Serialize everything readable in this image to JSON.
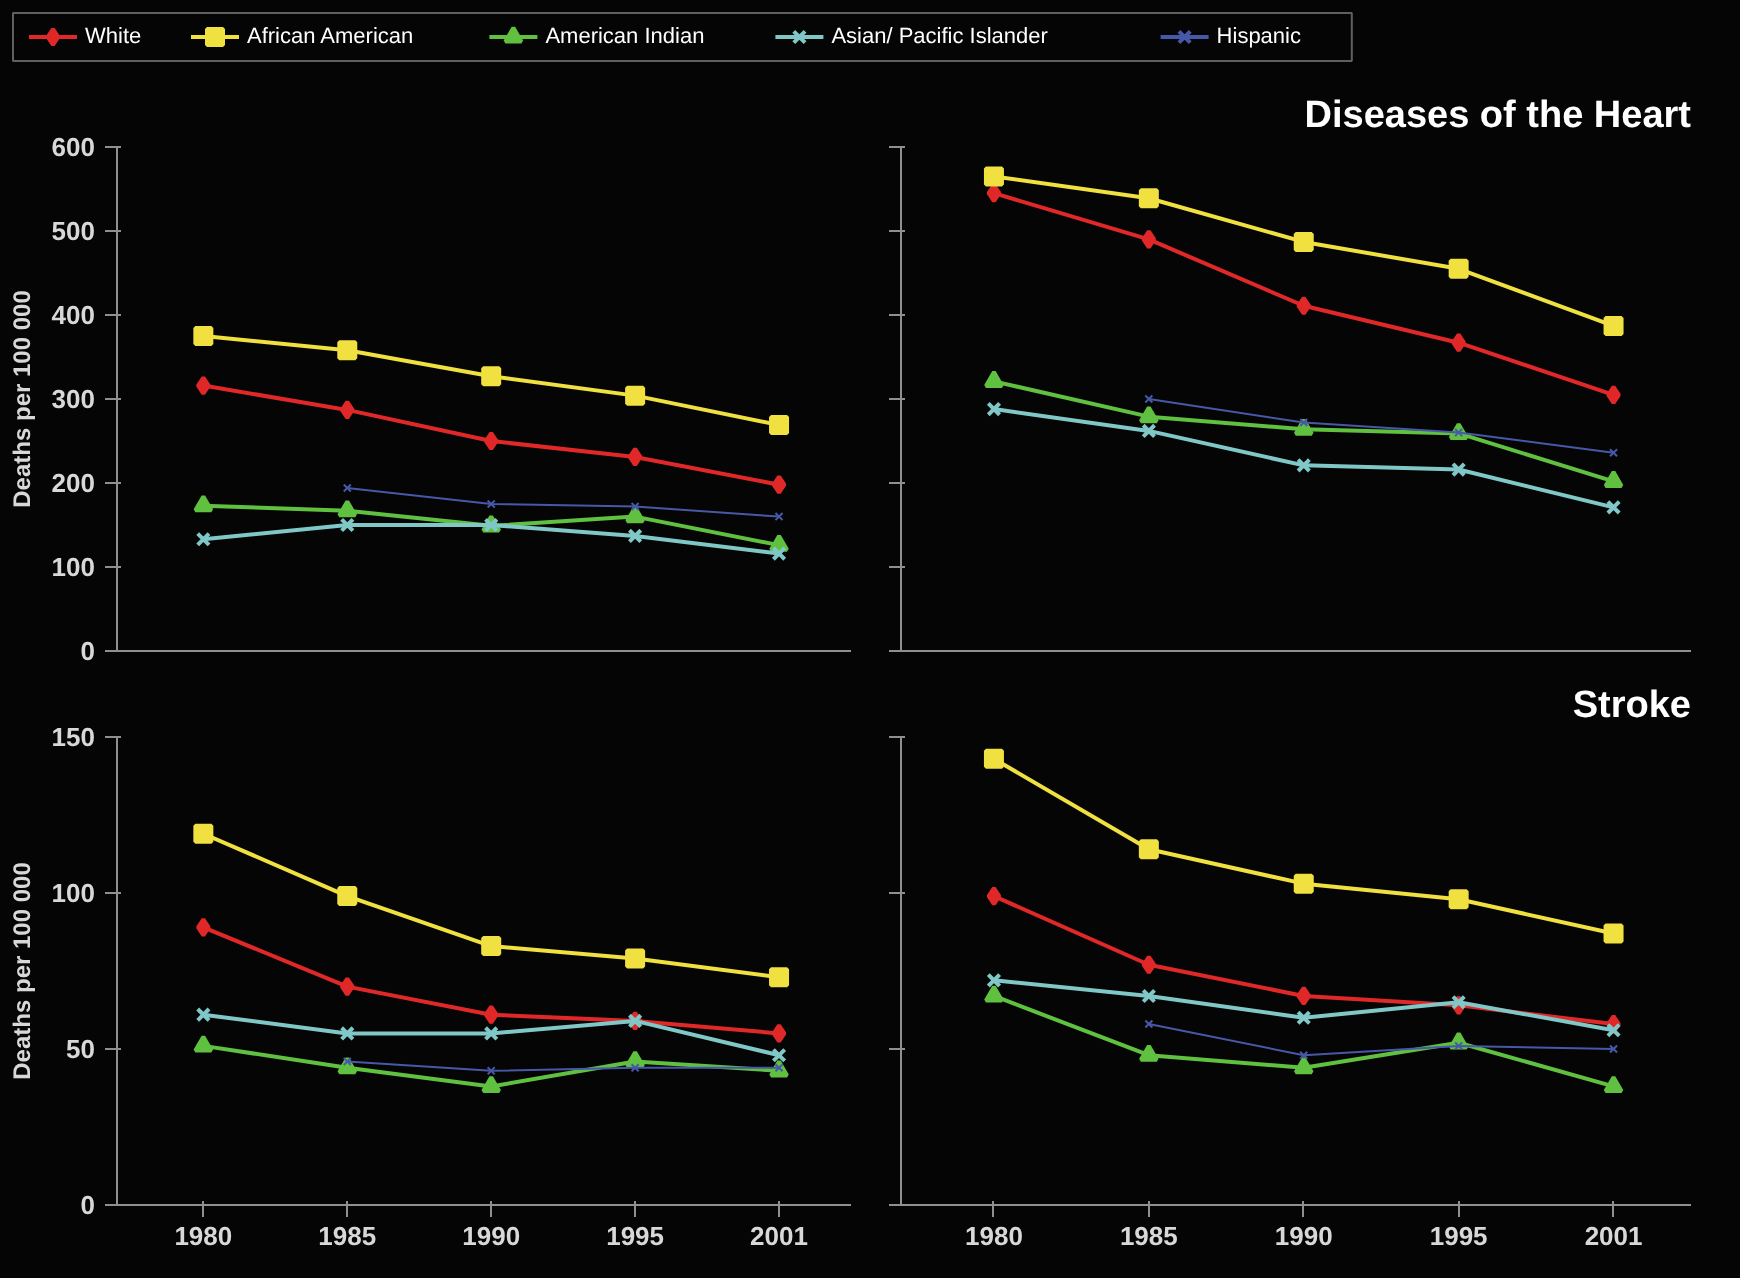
{
  "chart_data": [
    {
      "type": "line",
      "ylabel": "Deaths per 100 000",
      "categories": [
        "1980",
        "1985",
        "1990",
        "1995",
        "2001"
      ],
      "ylim": [
        0,
        600
      ],
      "yticks": [
        0,
        100,
        200,
        300,
        400,
        500,
        600
      ],
      "tick_labels": "y",
      "grid": false,
      "legend": "top",
      "line_style": "solid",
      "series": [
        {
          "name": "White",
          "color": "#e02828",
          "marker": "diamond",
          "values": [
            316,
            287,
            250,
            231,
            198
          ]
        },
        {
          "name": "African American",
          "color": "#f0e040",
          "marker": "square",
          "values": [
            375,
            358,
            327,
            304,
            269
          ]
        },
        {
          "name": "American Indian",
          "color": "#60c040",
          "marker": "triangle",
          "values": [
            173,
            167,
            149,
            160,
            126
          ]
        },
        {
          "name": "Asian/ Pacific Islander",
          "color": "#80c8c8",
          "marker": "cross",
          "values": [
            133,
            150,
            150,
            137,
            116
          ]
        },
        {
          "name": "Hispanic",
          "color": "#4858a8",
          "marker": "cross",
          "values": [
            null,
            194,
            175,
            172,
            160
          ]
        }
      ]
    },
    {
      "type": "line",
      "title": "Diseases of the Heart",
      "categories": [
        "1980",
        "1985",
        "1990",
        "1995",
        "2001"
      ],
      "ylim": [
        0,
        600
      ],
      "yticks": [
        0,
        100,
        200,
        300,
        400,
        500,
        600
      ],
      "tick_labels": false,
      "grid": false,
      "line_style": "solid",
      "series": [
        {
          "color": "#e02828",
          "marker": "diamond",
          "values": [
            545,
            490,
            411,
            367,
            305
          ]
        },
        {
          "color": "#f0e040",
          "marker": "square",
          "values": [
            565,
            539,
            487,
            455,
            387
          ]
        },
        {
          "color": "#60c040",
          "marker": "triangle",
          "values": [
            321,
            279,
            264,
            259,
            202
          ]
        },
        {
          "color": "#80c8c8",
          "marker": "cross",
          "values": [
            288,
            262,
            221,
            216,
            171
          ]
        },
        {
          "color": "#4858a8",
          "marker": "cross",
          "values": [
            null,
            300,
            272,
            260,
            236
          ]
        }
      ]
    },
    {
      "type": "line",
      "ylabel": "Deaths per 100 000",
      "categories": [
        "1980",
        "1985",
        "1990",
        "1995",
        "2001"
      ],
      "ylim": [
        0,
        150
      ],
      "yticks": [
        0,
        50,
        100,
        150
      ],
      "grid": false,
      "line_style": "solid",
      "series": [
        {
          "color": "#e02828",
          "marker": "diamond",
          "values": [
            89,
            70,
            61,
            59,
            55
          ]
        },
        {
          "color": "#f0e040",
          "marker": "square",
          "values": [
            119,
            99,
            83,
            79,
            73
          ]
        },
        {
          "color": "#60c040",
          "marker": "triangle",
          "values": [
            51,
            44,
            38,
            46,
            43
          ]
        },
        {
          "color": "#80c8c8",
          "marker": "cross",
          "values": [
            61,
            55,
            55,
            59,
            48
          ]
        },
        {
          "color": "#4858a8",
          "marker": "cross",
          "values": [
            null,
            46,
            43,
            44,
            44
          ]
        }
      ]
    },
    {
      "type": "line",
      "title": "Stroke",
      "categories": [
        "1980",
        "1985",
        "1990",
        "1995",
        "2001"
      ],
      "ylim": [
        0,
        150
      ],
      "yticks": [
        0,
        50,
        100,
        150
      ],
      "tick_labels": "x",
      "grid": false,
      "line_style": "solid",
      "series": [
        {
          "color": "#e02828",
          "marker": "diamond",
          "values": [
            99,
            77,
            67,
            64,
            58
          ]
        },
        {
          "color": "#f0e040",
          "marker": "square",
          "values": [
            143,
            114,
            103,
            98,
            87
          ]
        },
        {
          "color": "#60c040",
          "marker": "triangle",
          "values": [
            67,
            48,
            44,
            52,
            38
          ]
        },
        {
          "color": "#80c8c8",
          "marker": "cross",
          "values": [
            72,
            67,
            60,
            65,
            56
          ]
        },
        {
          "color": "#4858a8",
          "marker": "cross",
          "values": [
            null,
            58,
            48,
            51,
            50
          ]
        }
      ]
    }
  ]
}
